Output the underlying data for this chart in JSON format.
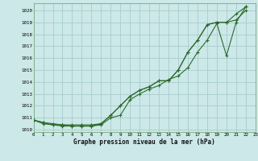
{
  "title": "Graphe pression niveau de la mer (hPa)",
  "bg_color": "#cce8e8",
  "grid_color": "#a8cccc",
  "line_color": "#2d6a2d",
  "xlim": [
    0,
    23
  ],
  "ylim": [
    1009.8,
    1020.6
  ],
  "ytick_vals": [
    1010,
    1011,
    1012,
    1013,
    1014,
    1015,
    1016,
    1017,
    1018,
    1019,
    1020
  ],
  "xtick_vals": [
    0,
    1,
    2,
    3,
    4,
    5,
    6,
    7,
    8,
    9,
    10,
    11,
    12,
    13,
    14,
    15,
    16,
    17,
    18,
    19,
    20,
    21,
    22,
    23
  ],
  "series1_x": [
    0,
    1,
    2,
    3,
    4,
    5,
    6,
    7,
    8,
    9,
    10,
    11,
    12,
    13,
    14,
    15,
    16,
    17,
    18,
    19,
    20,
    21,
    22
  ],
  "series1_y": [
    1010.8,
    1010.6,
    1010.5,
    1010.4,
    1010.4,
    1010.4,
    1010.4,
    1010.5,
    1011.2,
    1012.0,
    1012.8,
    1013.3,
    1013.6,
    1014.1,
    1014.1,
    1015.0,
    1016.5,
    1017.5,
    1018.8,
    1019.0,
    1019.0,
    1019.7,
    1020.3
  ],
  "series2_x": [
    0,
    1,
    2,
    3,
    4,
    5,
    6,
    7,
    8,
    9,
    10,
    11,
    12,
    13,
    14,
    15,
    16,
    17,
    18,
    19,
    20,
    21,
    22
  ],
  "series2_y": [
    1010.8,
    1010.6,
    1010.4,
    1010.3,
    1010.3,
    1010.3,
    1010.3,
    1010.5,
    1011.2,
    1012.0,
    1012.8,
    1013.3,
    1013.6,
    1014.1,
    1014.1,
    1015.0,
    1016.5,
    1017.5,
    1018.8,
    1019.0,
    1019.0,
    1019.2,
    1020.0
  ],
  "series3_x": [
    0,
    1,
    2,
    3,
    4,
    5,
    6,
    7,
    8,
    9,
    10,
    11,
    12,
    13,
    14,
    15,
    16,
    17,
    18,
    19,
    20,
    21,
    22
  ],
  "series3_y": [
    1010.8,
    1010.5,
    1010.4,
    1010.4,
    1010.3,
    1010.3,
    1010.3,
    1010.4,
    1011.0,
    1011.2,
    1012.5,
    1013.0,
    1013.4,
    1013.7,
    1014.2,
    1014.5,
    1015.2,
    1016.5,
    1017.5,
    1018.9,
    1016.2,
    1019.0,
    1020.3
  ]
}
